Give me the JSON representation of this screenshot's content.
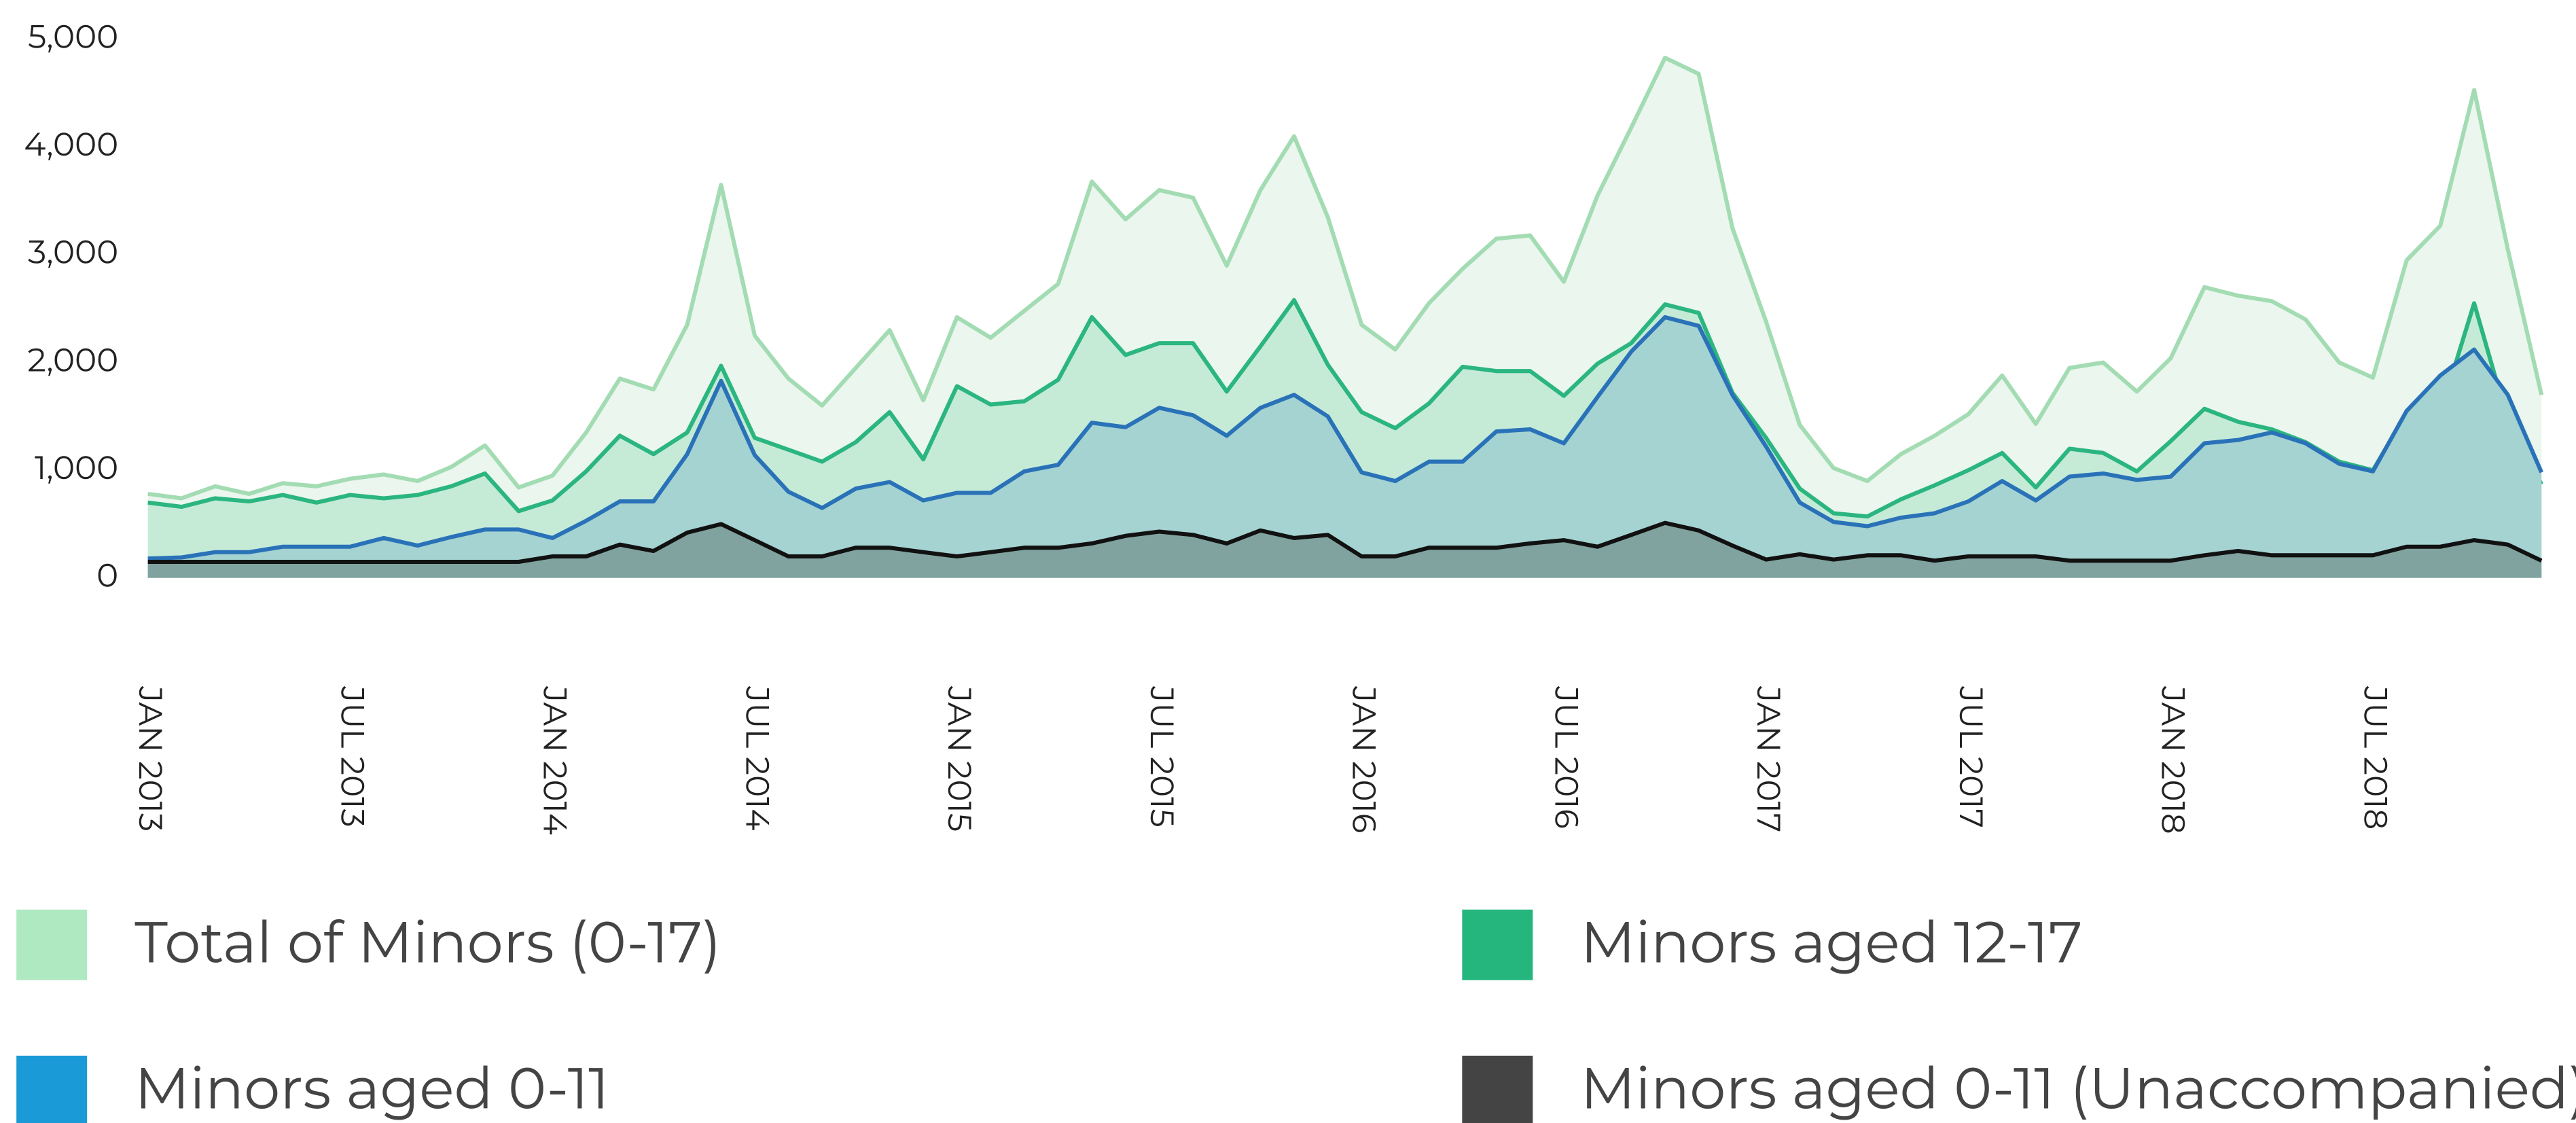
{
  "chart_data": {
    "type": "area",
    "categories": [
      "JAN 2013",
      null,
      null,
      null,
      null,
      null,
      "JUL 2013",
      null,
      null,
      null,
      null,
      null,
      "JAN 2014",
      null,
      null,
      null,
      null,
      null,
      "JUL 2014",
      null,
      null,
      null,
      null,
      null,
      "JAN 2015",
      null,
      null,
      null,
      null,
      null,
      "JUL 2015",
      null,
      null,
      null,
      null,
      null,
      "JAN 2016",
      null,
      null,
      null,
      null,
      null,
      "JUL 2016",
      null,
      null,
      null,
      null,
      null,
      "JAN 2017",
      null,
      null,
      null,
      null,
      null,
      "JUL 2017",
      null,
      null,
      null,
      null,
      null,
      "JAN 2018",
      null,
      null,
      null,
      null,
      null,
      "JUL 2018",
      null,
      null,
      null,
      null,
      null
    ],
    "series": [
      {
        "name": "Total of Minors (0-17)",
        "color": "#aee9c2",
        "line_color": "#a3dcb3",
        "fill": "#eaf6ee",
        "values": [
          780,
          740,
          850,
          780,
          880,
          850,
          920,
          960,
          900,
          1030,
          1230,
          840,
          950,
          1350,
          1850,
          1750,
          2350,
          3650,
          2250,
          1850,
          1600,
          1950,
          2300,
          1650,
          2420,
          2230,
          2480,
          2730,
          3680,
          3330,
          3600,
          3530,
          2900,
          3600,
          4100,
          3350,
          2350,
          2120,
          2550,
          2870,
          3150,
          3180,
          2750,
          3550,
          4180,
          4830,
          4680,
          3250,
          2380,
          1420,
          1020,
          900,
          1150,
          1320,
          1520,
          1880,
          1430,
          1950,
          2000,
          1730,
          2040,
          2700,
          2620,
          2570,
          2400,
          2000,
          1860,
          2950,
          3270,
          4530,
          3050,
          1700
        ]
      },
      {
        "name": "Minors aged 12-17",
        "color": "#25b67e",
        "line_color": "#2bb57f",
        "fill": "#c5ebd7",
        "values": [
          700,
          660,
          740,
          710,
          770,
          700,
          770,
          740,
          770,
          850,
          970,
          620,
          720,
          990,
          1320,
          1150,
          1350,
          1970,
          1300,
          1190,
          1080,
          1260,
          1540,
          1100,
          1780,
          1610,
          1640,
          1840,
          2420,
          2070,
          2180,
          2180,
          1730,
          2150,
          2580,
          1980,
          1540,
          1390,
          1620,
          1960,
          1920,
          1920,
          1690,
          1990,
          2180,
          2540,
          2460,
          1720,
          1300,
          830,
          600,
          570,
          730,
          860,
          1000,
          1160,
          840,
          1200,
          1160,
          990,
          1270,
          1570,
          1450,
          1380,
          1260,
          1080,
          1000,
          1530,
          1530,
          2550,
          1460,
          870
        ]
      },
      {
        "name": "Minors aged 0-11",
        "color": "#1a9ad6",
        "line_color": "#2a72b8",
        "fill": "#a4d3d2",
        "values": [
          180,
          190,
          240,
          240,
          290,
          290,
          290,
          370,
          300,
          380,
          450,
          450,
          370,
          530,
          710,
          710,
          1150,
          1830,
          1140,
          800,
          650,
          830,
          890,
          720,
          790,
          790,
          990,
          1050,
          1440,
          1400,
          1580,
          1510,
          1320,
          1580,
          1700,
          1500,
          980,
          900,
          1080,
          1080,
          1360,
          1380,
          1250,
          1680,
          2100,
          2420,
          2340,
          1700,
          1220,
          700,
          520,
          480,
          560,
          600,
          710,
          900,
          720,
          940,
          970,
          910,
          940,
          1250,
          1280,
          1350,
          1250,
          1060,
          990,
          1550,
          1880,
          2120,
          1700,
          980
        ]
      },
      {
        "name": "Minors aged 0-11 (Unaccompanied)",
        "color": "#444444",
        "line_color": "#111111",
        "fill": "#80a39f",
        "values": [
          150,
          150,
          150,
          150,
          150,
          150,
          150,
          150,
          150,
          150,
          150,
          150,
          200,
          200,
          310,
          250,
          420,
          500,
          350,
          200,
          200,
          280,
          280,
          240,
          200,
          240,
          280,
          280,
          320,
          390,
          430,
          400,
          320,
          440,
          370,
          400,
          200,
          200,
          280,
          280,
          280,
          320,
          350,
          290,
          400,
          510,
          440,
          300,
          170,
          220,
          170,
          210,
          210,
          160,
          200,
          200,
          200,
          160,
          160,
          160,
          160,
          210,
          250,
          210,
          210,
          210,
          210,
          290,
          290,
          350,
          310,
          160
        ]
      }
    ],
    "ylim": [
      0,
      5000
    ],
    "yticks": [
      0,
      {
        "value": 1000,
        "label": "1,000"
      },
      {
        "value": 2000,
        "label": "2,000"
      },
      {
        "value": 3000,
        "label": "3,000"
      },
      {
        "value": 4000,
        "label": "4,000"
      },
      {
        "value": 5000,
        "label": "5,000"
      }
    ],
    "grid": false
  }
}
